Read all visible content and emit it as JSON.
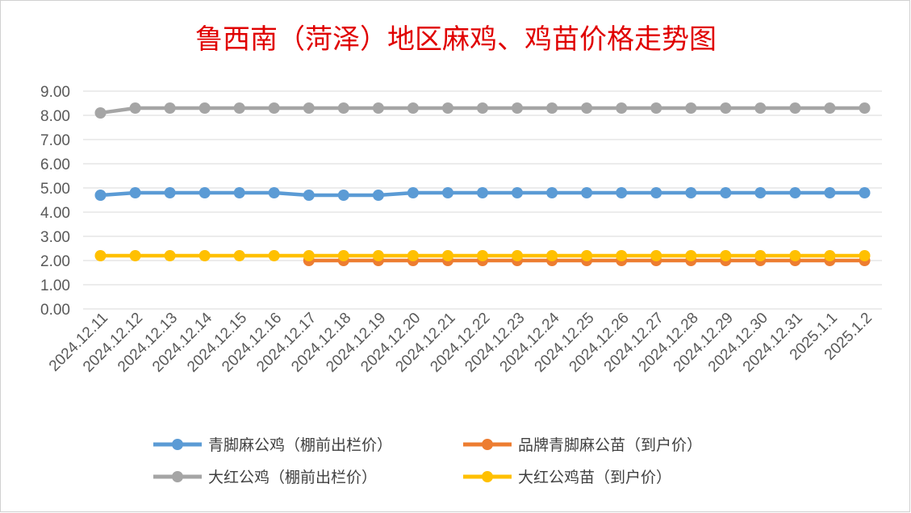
{
  "chart_data": {
    "type": "line",
    "title": "鲁西南（菏泽）地区麻鸡、鸡苗价格走势图",
    "xlabel": "",
    "ylabel": "",
    "ylim": [
      0,
      9
    ],
    "ytick_labels": [
      "0.00",
      "1.00",
      "2.00",
      "3.00",
      "4.00",
      "5.00",
      "6.00",
      "7.00",
      "8.00",
      "9.00"
    ],
    "categories": [
      "2024.12.11",
      "2024.12.12",
      "2024.12.13",
      "2024.12.14",
      "2024.12.15",
      "2024.12.16",
      "2024.12.17",
      "2024.12.18",
      "2024.12.19",
      "2024.12.20",
      "2024.12.21",
      "2024.12.22",
      "2024.12.23",
      "2024.12.24",
      "2024.12.25",
      "2024.12.26",
      "2024.12.27",
      "2024.12.28",
      "2024.12.29",
      "2024.12.30",
      "2024.12.31",
      "2025.1.1",
      "2025.1.2"
    ],
    "grid": true,
    "legend_position": "bottom",
    "series": [
      {
        "name": "青脚麻公鸡（棚前出栏价）",
        "color": "#5b9bd5",
        "values": [
          4.7,
          4.8,
          4.8,
          4.8,
          4.8,
          4.8,
          4.7,
          4.7,
          4.7,
          4.8,
          4.8,
          4.8,
          4.8,
          4.8,
          4.8,
          4.8,
          4.8,
          4.8,
          4.8,
          4.8,
          4.8,
          4.8,
          4.8
        ]
      },
      {
        "name": "品牌青脚麻公苗（到户价）",
        "color": "#ed7d31",
        "values": [
          null,
          null,
          null,
          null,
          null,
          null,
          2.0,
          2.0,
          2.0,
          2.0,
          2.0,
          2.0,
          2.0,
          2.0,
          2.0,
          2.0,
          2.0,
          2.0,
          2.0,
          2.0,
          2.0,
          2.0,
          2.0
        ]
      },
      {
        "name": "大红公鸡（棚前出栏价）",
        "color": "#a5a5a5",
        "values": [
          8.1,
          8.3,
          8.3,
          8.3,
          8.3,
          8.3,
          8.3,
          8.3,
          8.3,
          8.3,
          8.3,
          8.3,
          8.3,
          8.3,
          8.3,
          8.3,
          8.3,
          8.3,
          8.3,
          8.3,
          8.3,
          8.3,
          8.3
        ]
      },
      {
        "name": "大红公鸡苗（到户价）",
        "color": "#ffc000",
        "values": [
          2.2,
          2.2,
          2.2,
          2.2,
          2.2,
          2.2,
          2.2,
          2.2,
          2.2,
          2.2,
          2.2,
          2.2,
          2.2,
          2.2,
          2.2,
          2.2,
          2.2,
          2.2,
          2.2,
          2.2,
          2.2,
          2.2,
          2.2
        ]
      }
    ]
  }
}
